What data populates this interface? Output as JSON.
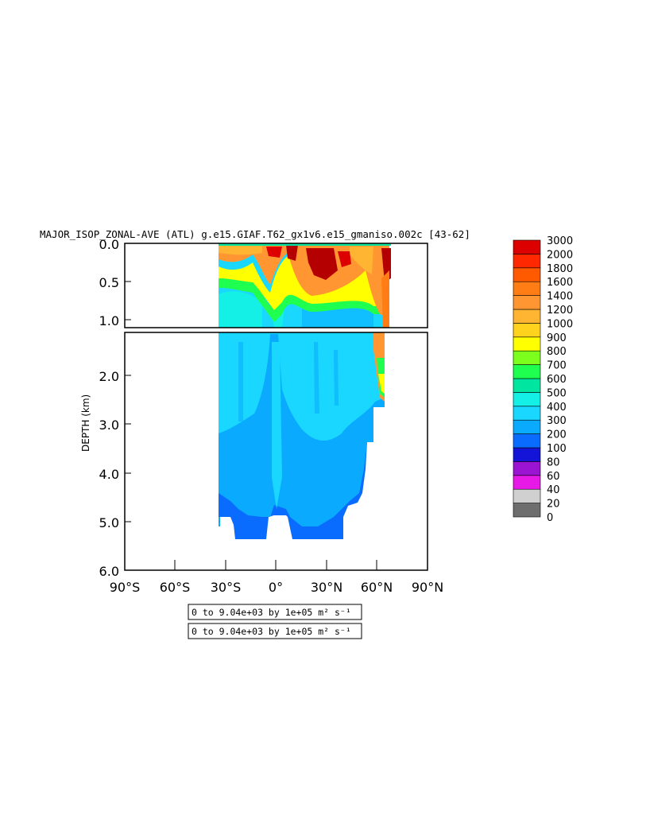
{
  "chart_data": {
    "type": "heatmap",
    "title": "MAJOR_ISOP_ZONAL-AVE (ATL) g.e15.GIAF.T62_gx1v6.e15_gmaniso.002c [43-62]",
    "ylabel": "DEPTH (km)",
    "x_ticks": [
      "90°S",
      "60°S",
      "30°S",
      "0°",
      "30°N",
      "60°N",
      "90°N"
    ],
    "y_ticks_upper": [
      "0.0",
      "0.5",
      "1.0"
    ],
    "y_ticks_lower": [
      "2.0",
      "3.0",
      "4.0",
      "5.0",
      "6.0"
    ],
    "xlim": [
      -90,
      90
    ],
    "ylim_upper_km": [
      1.1,
      0
    ],
    "ylim_lower_km": [
      6,
      1.1
    ],
    "colorbar_levels": [
      "0",
      "20",
      "40",
      "60",
      "80",
      "100",
      "200",
      "300",
      "400",
      "500",
      "600",
      "700",
      "800",
      "900",
      "1000",
      "1200",
      "1400",
      "1600",
      "1800",
      "2000",
      "3000"
    ],
    "colorbar_colors": [
      "#6e6e6e",
      "#d0d0d0",
      "#e619e6",
      "#9b14d2",
      "#1414d8",
      "#0a6cff",
      "#0aabff",
      "#19d7ff",
      "#14f0e6",
      "#00e6a0",
      "#1eff50",
      "#7dff1e",
      "#ffff00",
      "#ffd21e",
      "#ffb432",
      "#ff9632",
      "#ff7d14",
      "#ff5a00",
      "#ff2800",
      "#dc0000",
      "#b40000"
    ],
    "notes": [
      "0 to 9.04e+03 by 1e+05 m² s⁻¹",
      "0 to 9.04e+03 by 1e+05 m² s⁻¹"
    ]
  }
}
